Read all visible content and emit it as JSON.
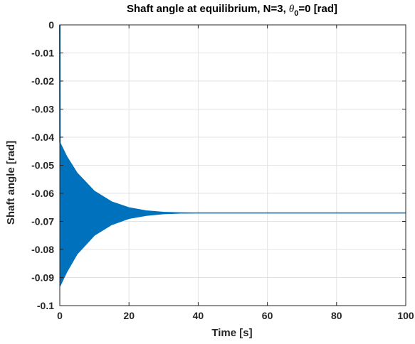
{
  "chart_data": {
    "type": "line",
    "title_parts": {
      "prefix": "Shaft angle at equilibrium, N=3,  ",
      "symbol": "θ",
      "subscript": "0",
      "suffix": "=0 [rad]"
    },
    "xlabel": "Time [s]",
    "ylabel": "Shaft angle [rad]",
    "xlim": [
      0,
      100
    ],
    "ylim": [
      -0.1,
      0
    ],
    "xticks": [
      0,
      20,
      40,
      60,
      80,
      100
    ],
    "xtick_labels": [
      "0",
      "20",
      "40",
      "60",
      "80",
      "100"
    ],
    "yticks": [
      0,
      -0.01,
      -0.02,
      -0.03,
      -0.04,
      -0.05,
      -0.06,
      -0.07,
      -0.08,
      -0.09,
      -0.1
    ],
    "ytick_labels": [
      "0",
      "-0.01",
      "-0.02",
      "-0.03",
      "-0.04",
      "-0.05",
      "-0.06",
      "-0.07",
      "-0.08",
      "-0.09",
      "-0.1"
    ],
    "grid": true,
    "series": [
      {
        "color": "#0072bd",
        "initial_drop": [
          [
            0,
            0
          ],
          [
            0.05,
            -0.042
          ]
        ],
        "upper_envelope": [
          [
            0.1,
            -0.042
          ],
          [
            2,
            -0.0468
          ],
          [
            5,
            -0.0527
          ],
          [
            10,
            -0.0592
          ],
          [
            15,
            -0.063
          ],
          [
            20,
            -0.0651
          ],
          [
            25,
            -0.0662
          ],
          [
            30,
            -0.0667
          ],
          [
            35,
            -0.0669
          ],
          [
            40,
            -0.067
          ],
          [
            100,
            -0.067
          ]
        ],
        "lower_envelope": [
          [
            0.1,
            -0.093
          ],
          [
            2,
            -0.0881
          ],
          [
            5,
            -0.0817
          ],
          [
            10,
            -0.075
          ],
          [
            15,
            -0.0712
          ],
          [
            20,
            -0.069
          ],
          [
            25,
            -0.0679
          ],
          [
            30,
            -0.0673
          ],
          [
            35,
            -0.0671
          ],
          [
            40,
            -0.067
          ],
          [
            100,
            -0.067
          ]
        ],
        "steady_value": -0.067
      }
    ]
  }
}
